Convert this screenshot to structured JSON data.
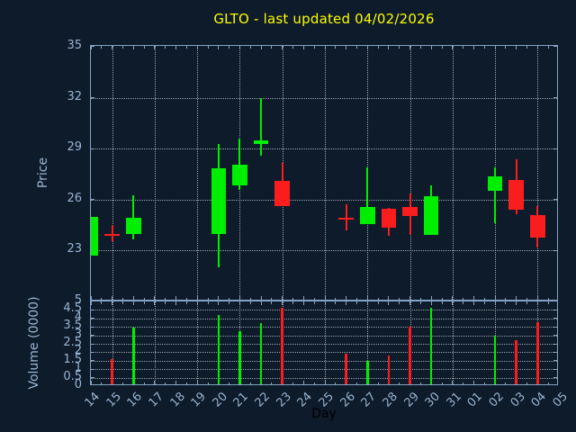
{
  "chart_data": {
    "type": "candlestick",
    "title": "GLTO - last updated 04/02/2026",
    "xlabel": "Day",
    "price_axis": {
      "label": "Price",
      "ticks": [
        23,
        26,
        29,
        32,
        35
      ],
      "ylim": [
        20,
        35.05
      ],
      "grid": true
    },
    "volume_axis": {
      "label": "Volume (0000)",
      "ticks": [
        0,
        0.5,
        1,
        1.5,
        2,
        2.5,
        3,
        3.5,
        4,
        4.5,
        5
      ],
      "ylim": [
        0,
        5
      ],
      "grid": true
    },
    "x_categories": [
      "14",
      "15",
      "16",
      "17",
      "18",
      "19",
      "20",
      "21",
      "22",
      "23",
      "24",
      "25",
      "26",
      "27",
      "28",
      "29",
      "30",
      "31",
      "01",
      "02",
      "03",
      "04",
      "05"
    ],
    "x_gridline_days": [
      "15",
      "17",
      "19",
      "21",
      "23",
      "25",
      "27",
      "29",
      "31",
      "02",
      "04"
    ],
    "legend_position": "none",
    "candles": [
      {
        "day": "14",
        "open": 22.7,
        "high": 25.0,
        "low": 22.7,
        "close": 25.0,
        "volume": 0,
        "direction": "up"
      },
      {
        "day": "15",
        "open": 24.0,
        "high": 24.5,
        "low": 23.55,
        "close": 23.95,
        "volume": 1.6,
        "direction": "down"
      },
      {
        "day": "16",
        "open": 24.0,
        "high": 26.25,
        "low": 23.65,
        "close": 24.95,
        "volume": 3.45,
        "direction": "up"
      },
      {
        "day": "20",
        "open": 23.95,
        "high": 29.3,
        "low": 22.0,
        "close": 27.85,
        "volume": 4.2,
        "direction": "up"
      },
      {
        "day": "21",
        "open": 26.85,
        "high": 29.6,
        "low": 26.55,
        "close": 28.05,
        "volume": 3.25,
        "direction": "up"
      },
      {
        "day": "22",
        "open": 29.25,
        "high": 31.95,
        "low": 28.6,
        "close": 29.5,
        "volume": 3.7,
        "direction": "up"
      },
      {
        "day": "23",
        "open": 27.1,
        "high": 28.15,
        "low": 25.6,
        "close": 25.6,
        "volume": 4.65,
        "direction": "down"
      },
      {
        "day": "26",
        "open": 24.95,
        "high": 25.7,
        "low": 24.2,
        "close": 24.9,
        "volume": 1.9,
        "direction": "down"
      },
      {
        "day": "27",
        "open": 24.55,
        "high": 27.9,
        "low": 24.55,
        "close": 25.55,
        "volume": 1.5,
        "direction": "up"
      },
      {
        "day": "28",
        "open": 25.45,
        "high": 25.5,
        "low": 23.85,
        "close": 24.35,
        "volume": 1.8,
        "direction": "down"
      },
      {
        "day": "29",
        "open": 25.55,
        "high": 26.35,
        "low": 23.9,
        "close": 25.05,
        "volume": 3.5,
        "direction": "down"
      },
      {
        "day": "30",
        "open": 23.9,
        "high": 26.85,
        "low": 23.9,
        "close": 26.2,
        "volume": 4.65,
        "direction": "up"
      },
      {
        "day": "02",
        "open": 26.5,
        "high": 27.9,
        "low": 24.6,
        "close": 27.35,
        "volume": 3.0,
        "direction": "up"
      },
      {
        "day": "03",
        "open": 27.15,
        "high": 28.35,
        "low": 25.15,
        "close": 25.4,
        "volume": 2.7,
        "direction": "down"
      },
      {
        "day": "04",
        "open": 25.1,
        "high": 25.6,
        "low": 23.2,
        "close": 23.75,
        "volume": 3.8,
        "direction": "down"
      }
    ],
    "colors": {
      "up": "#00ee00",
      "down": "#fa1d1d",
      "background": "#0e1b2a",
      "axis": "#84a3c4",
      "tick_label": "#97b4d2",
      "grid": "#c0c6cc",
      "title": "#fcfc00",
      "xlabel_color": "#000000"
    }
  }
}
